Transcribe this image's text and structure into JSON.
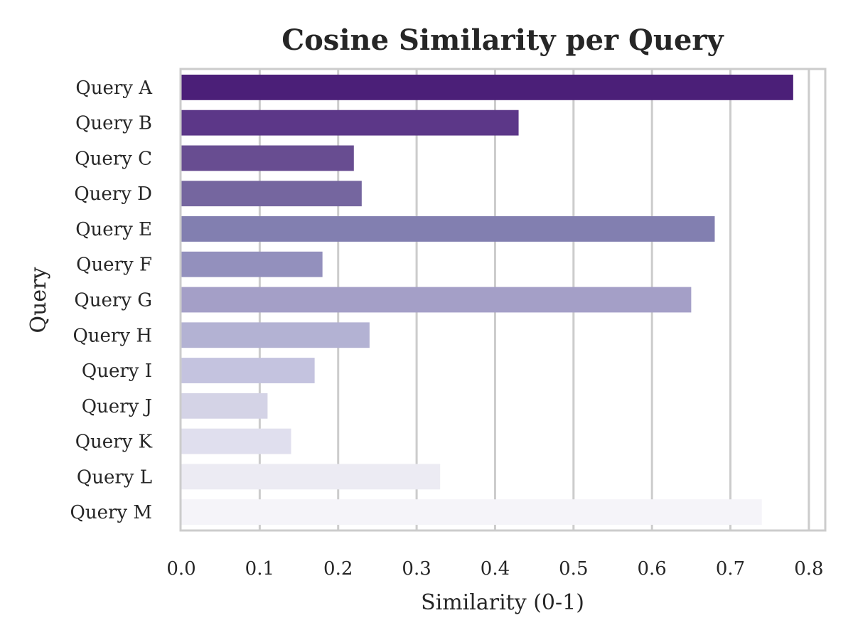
{
  "chart_data": {
    "type": "bar",
    "orientation": "horizontal",
    "title": "Cosine Similarity per Query",
    "xlabel": "Similarity (0-1)",
    "ylabel": "Query",
    "categories": [
      "Query A",
      "Query B",
      "Query C",
      "Query D",
      "Query E",
      "Query F",
      "Query G",
      "Query H",
      "Query I",
      "Query J",
      "Query K",
      "Query L",
      "Query M"
    ],
    "values": [
      0.78,
      0.43,
      0.22,
      0.23,
      0.68,
      0.18,
      0.65,
      0.24,
      0.17,
      0.11,
      0.14,
      0.33,
      0.74
    ],
    "xlim": [
      0,
      0.82
    ],
    "xticks": [
      "0.0",
      "0.1",
      "0.2",
      "0.3",
      "0.4",
      "0.5",
      "0.6",
      "0.7",
      "0.8"
    ],
    "grid": "vertical",
    "colors": [
      "#4b1f78",
      "#5c3788",
      "#684d91",
      "#75669f",
      "#827fb0",
      "#9390bd",
      "#a49fc7",
      "#b3b2d3",
      "#c4c3df",
      "#d4d3e6",
      "#e0dfee",
      "#ecebf3",
      "#f5f4f9"
    ],
    "grid_color": "#cccccc",
    "frame_color": "#cccccc"
  }
}
